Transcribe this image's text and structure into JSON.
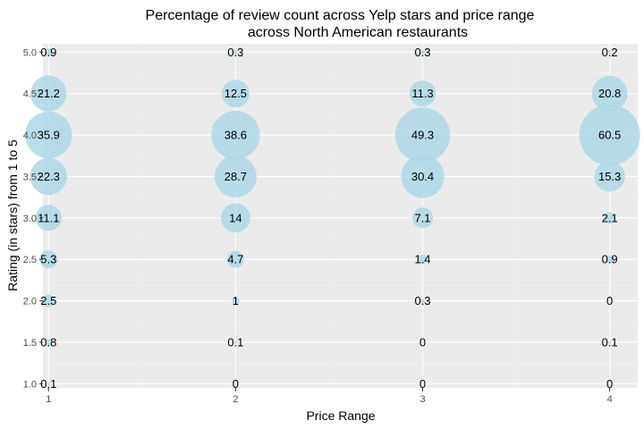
{
  "chart_data": {
    "type": "scatter",
    "title": "Percentage of review count across Yelp stars and price range",
    "subtitle": "across North American restaurants",
    "xlabel": "Price Range",
    "ylabel": "Rating (in stars) from 1 to 5",
    "x_ticks": [
      "1",
      "2",
      "3",
      "4"
    ],
    "y_ticks": [
      "1.0",
      "1.5",
      "2.0",
      "2.5",
      "3.0",
      "3.5",
      "4.0",
      "4.5",
      "5.0"
    ],
    "xlim": [
      0.97,
      4.15
    ],
    "ylim": [
      0.95,
      5.1
    ],
    "grid": true,
    "bubble_color": "#add8e6",
    "panel_color": "#ebebeb",
    "points": [
      {
        "x": 1,
        "y": 5.0,
        "value": 0.9,
        "label": "0.9"
      },
      {
        "x": 1,
        "y": 4.5,
        "value": 21.2,
        "label": "21.2"
      },
      {
        "x": 1,
        "y": 4.0,
        "value": 35.9,
        "label": "35.9"
      },
      {
        "x": 1,
        "y": 3.5,
        "value": 22.3,
        "label": "22.3"
      },
      {
        "x": 1,
        "y": 3.0,
        "value": 11.1,
        "label": "11.1"
      },
      {
        "x": 1,
        "y": 2.5,
        "value": 5.3,
        "label": "5.3"
      },
      {
        "x": 1,
        "y": 2.0,
        "value": 2.5,
        "label": "2.5"
      },
      {
        "x": 1,
        "y": 1.5,
        "value": 0.8,
        "label": "0.8"
      },
      {
        "x": 1,
        "y": 1.0,
        "value": 0.1,
        "label": "0.1"
      },
      {
        "x": 2,
        "y": 5.0,
        "value": 0.3,
        "label": "0.3"
      },
      {
        "x": 2,
        "y": 4.5,
        "value": 12.5,
        "label": "12.5"
      },
      {
        "x": 2,
        "y": 4.0,
        "value": 38.6,
        "label": "38.6"
      },
      {
        "x": 2,
        "y": 3.5,
        "value": 28.7,
        "label": "28.7"
      },
      {
        "x": 2,
        "y": 3.0,
        "value": 14,
        "label": "14"
      },
      {
        "x": 2,
        "y": 2.5,
        "value": 4.7,
        "label": "4.7"
      },
      {
        "x": 2,
        "y": 2.0,
        "value": 1,
        "label": "1"
      },
      {
        "x": 2,
        "y": 1.5,
        "value": 0.1,
        "label": "0.1"
      },
      {
        "x": 2,
        "y": 1.0,
        "value": 0,
        "label": "0"
      },
      {
        "x": 3,
        "y": 5.0,
        "value": 0.3,
        "label": "0.3"
      },
      {
        "x": 3,
        "y": 4.5,
        "value": 11.3,
        "label": "11.3"
      },
      {
        "x": 3,
        "y": 4.0,
        "value": 49.3,
        "label": "49.3"
      },
      {
        "x": 3,
        "y": 3.5,
        "value": 30.4,
        "label": "30.4"
      },
      {
        "x": 3,
        "y": 3.0,
        "value": 7.1,
        "label": "7.1"
      },
      {
        "x": 3,
        "y": 2.5,
        "value": 1.4,
        "label": "1.4"
      },
      {
        "x": 3,
        "y": 2.0,
        "value": 0.3,
        "label": "0.3"
      },
      {
        "x": 3,
        "y": 1.5,
        "value": 0,
        "label": "0"
      },
      {
        "x": 3,
        "y": 1.0,
        "value": 0,
        "label": "0"
      },
      {
        "x": 4,
        "y": 5.0,
        "value": 0.2,
        "label": "0.2"
      },
      {
        "x": 4,
        "y": 4.5,
        "value": 20.8,
        "label": "20.8"
      },
      {
        "x": 4,
        "y": 4.0,
        "value": 60.5,
        "label": "60.5"
      },
      {
        "x": 4,
        "y": 3.5,
        "value": 15.3,
        "label": "15.3"
      },
      {
        "x": 4,
        "y": 3.0,
        "value": 2.1,
        "label": "2.1"
      },
      {
        "x": 4,
        "y": 2.5,
        "value": 0.9,
        "label": "0.9"
      },
      {
        "x": 4,
        "y": 2.0,
        "value": 0,
        "label": "0"
      },
      {
        "x": 4,
        "y": 1.5,
        "value": 0.1,
        "label": "0.1"
      },
      {
        "x": 4,
        "y": 1.0,
        "value": 0,
        "label": "0"
      }
    ]
  }
}
